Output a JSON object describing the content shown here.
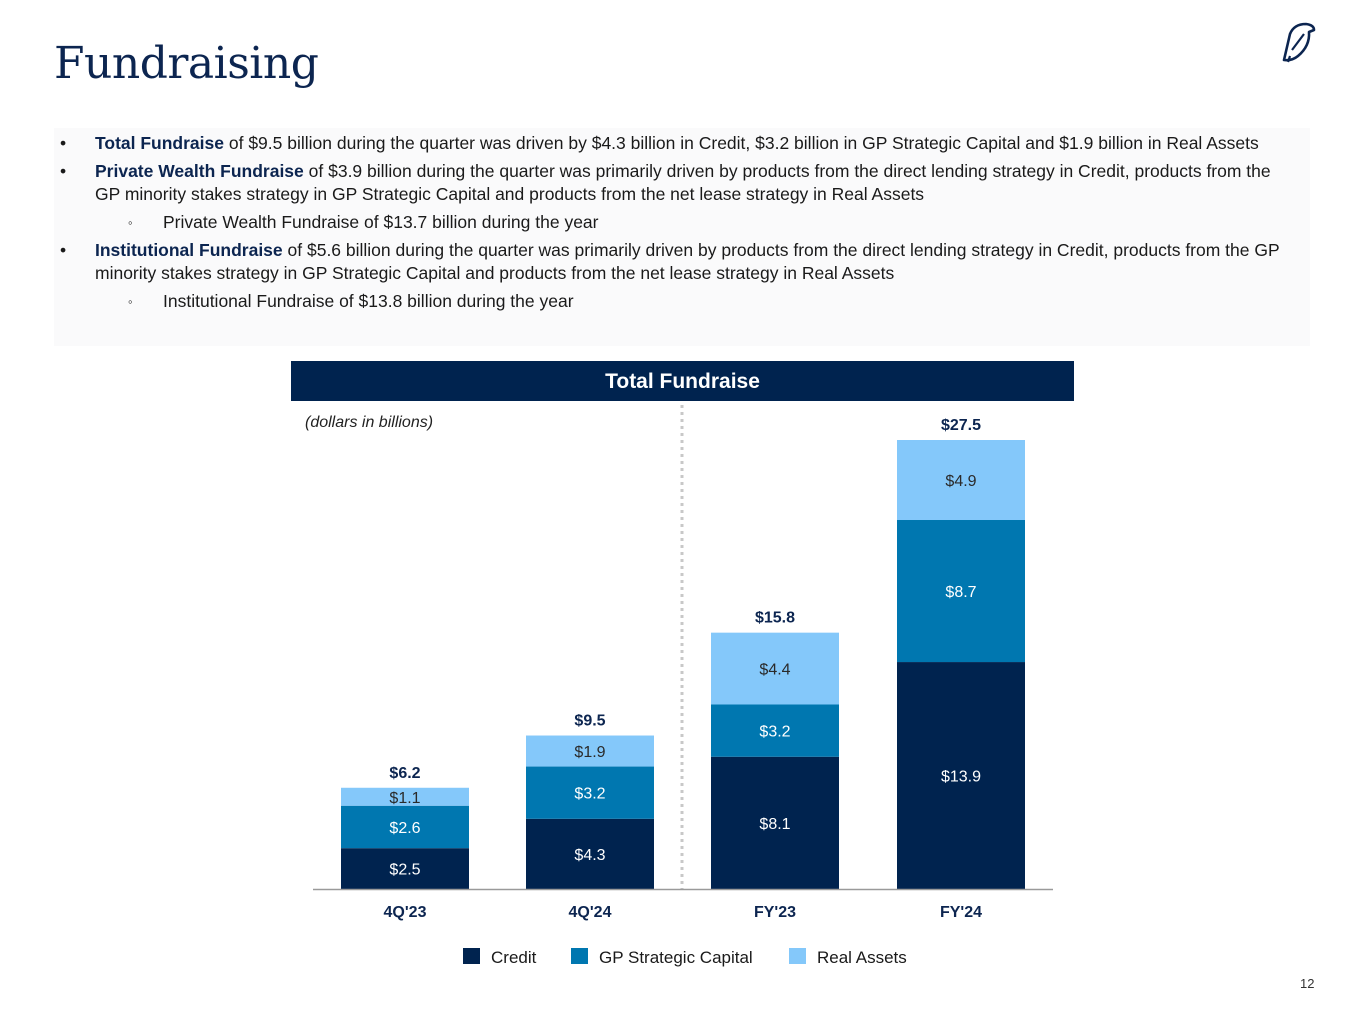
{
  "title": "Fundraising",
  "bullets": [
    {
      "level": 1,
      "bold": "Total Fundraise",
      "text": " of $9.5 billion during the quarter was driven by $4.3 billion in Credit, $3.2 billion in GP Strategic Capital and $1.9 billion in Real Assets"
    },
    {
      "level": 1,
      "bold": "Private Wealth Fundraise",
      "text": " of $3.9 billion during the quarter was primarily driven by products from the direct lending strategy in Credit, products from the GP minority stakes strategy in GP Strategic Capital and products from the net lease strategy in Real Assets"
    },
    {
      "level": 2,
      "bold": "",
      "text": "Private Wealth Fundraise of $13.7 billion during the year"
    },
    {
      "level": 1,
      "bold": "Institutional Fundraise",
      "text": " of $5.6 billion during the quarter was primarily driven by products from the direct lending strategy in Credit, products from the GP minority stakes strategy in GP Strategic Capital and products from the net lease strategy in Real Assets"
    },
    {
      "level": 2,
      "bold": "",
      "text": "Institutional Fundraise of $13.8 billion during the year"
    }
  ],
  "bullet_marks": {
    "level1": "•",
    "level2": "◦"
  },
  "page_number": "12",
  "colors": {
    "navy": "#00234f",
    "credit": "#00234f",
    "gp": "#0077b0",
    "real": "#84c8fa",
    "title": "#0c2550"
  },
  "chart_data": {
    "type": "bar",
    "stacked": true,
    "title": "Total Fundraise",
    "units_note": "(dollars in billions)",
    "categories": [
      "4Q'23",
      "4Q'24",
      "FY'23",
      "FY'24"
    ],
    "series": [
      {
        "name": "Credit",
        "values": [
          2.5,
          4.3,
          8.1,
          13.9
        ],
        "labels": [
          "$2.5",
          "$4.3",
          "$8.1",
          "$13.9"
        ]
      },
      {
        "name": "GP Strategic Capital",
        "values": [
          2.6,
          3.2,
          3.2,
          8.7
        ],
        "labels": [
          "$2.6",
          "$3.2",
          "$3.2",
          "$8.7"
        ]
      },
      {
        "name": "Real Assets",
        "values": [
          1.1,
          1.9,
          4.4,
          4.9
        ],
        "labels": [
          "$1.1",
          "$1.9",
          "$4.4",
          "$4.9"
        ]
      }
    ],
    "totals": [
      "$6.2",
      "$9.5",
      "$15.8",
      "$27.5"
    ],
    "ylim": [
      0,
      27.5
    ],
    "legend": "bottom",
    "separator_after_category": 1
  }
}
